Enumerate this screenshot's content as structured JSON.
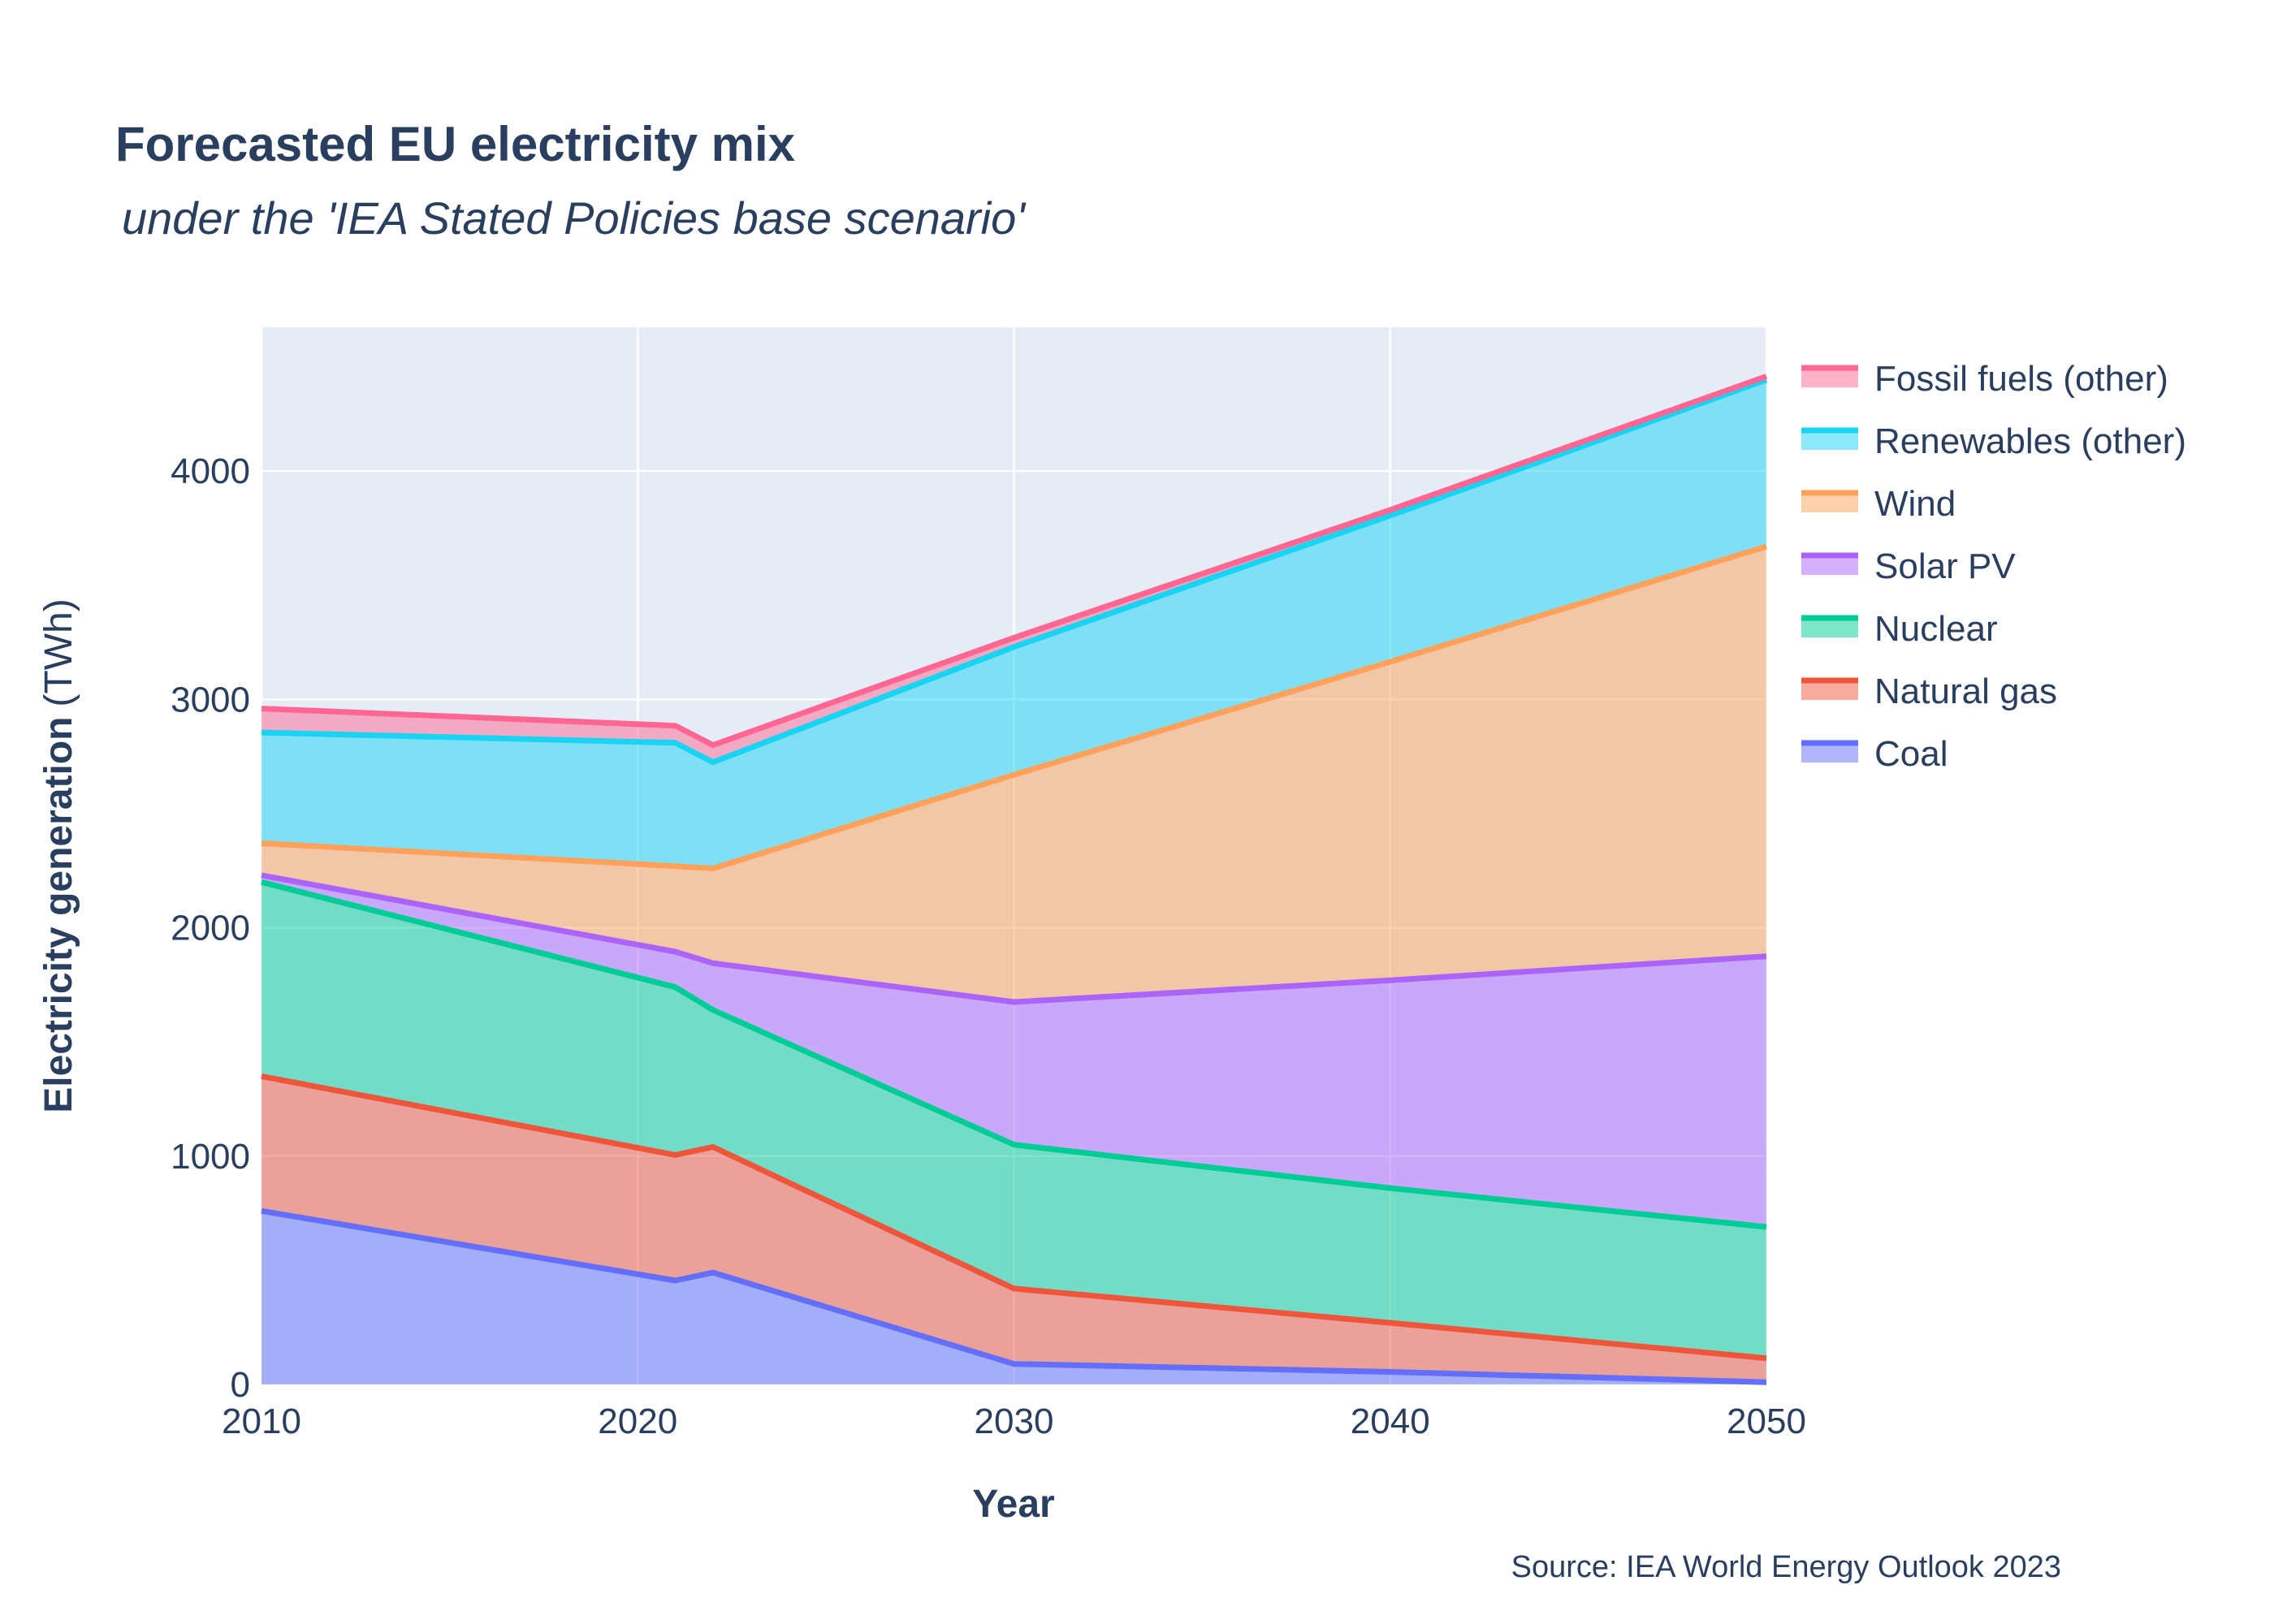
{
  "chart_data": {
    "type": "area",
    "stacked": true,
    "title": "Forecasted EU electricity mix",
    "subtitle": "under the 'IEA Stated Policies base scenario'",
    "xlabel": "Year",
    "ylabel_bold": "Electricity generation",
    "ylabel_unit": "(TWh)",
    "source": "Source: IEA World Energy Outlook 2023",
    "x": [
      2010,
      2021,
      2022,
      2030,
      2040,
      2050
    ],
    "xlim": [
      2010,
      2050
    ],
    "ylim": [
      0,
      4630
    ],
    "xticks": [
      2010,
      2020,
      2030,
      2040,
      2050
    ],
    "yticks": [
      0,
      1000,
      2000,
      3000,
      4000
    ],
    "grid": true,
    "legend_position": "right",
    "plot_background": "#e5ecf6",
    "series": [
      {
        "name": "Coal",
        "color": "#636efa",
        "values": [
          760,
          455,
          490,
          90,
          55,
          10
        ]
      },
      {
        "name": "Natural gas",
        "color": "#ef553b",
        "values": [
          590,
          550,
          550,
          330,
          215,
          105
        ]
      },
      {
        "name": "Nuclear",
        "color": "#00cc96",
        "values": [
          850,
          735,
          600,
          630,
          590,
          575
        ]
      },
      {
        "name": "Solar PV",
        "color": "#ab63fa",
        "values": [
          30,
          155,
          205,
          625,
          910,
          1185
        ]
      },
      {
        "name": "Wind",
        "color": "#ffa15a",
        "values": [
          140,
          375,
          415,
          995,
          1395,
          1795
        ]
      },
      {
        "name": "Renewables (other)",
        "color": "#19d3f3",
        "values": [
          485,
          540,
          465,
          560,
          640,
          730
        ]
      },
      {
        "name": "Fossil fuels (other)",
        "color": "#ff6692",
        "values": [
          105,
          75,
          75,
          40,
          25,
          15
        ]
      }
    ]
  }
}
